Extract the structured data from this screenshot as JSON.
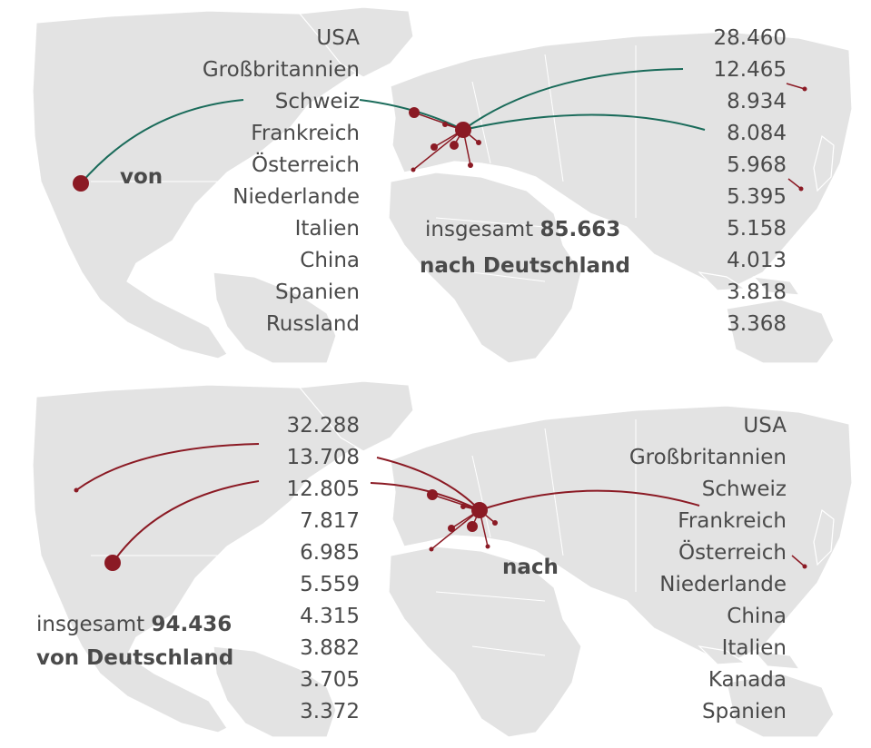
{
  "colors": {
    "top_flow": "#1a6b5a",
    "bottom_flow": "#8b1a24",
    "dot": "#8b1a24",
    "land": "#e3e3e3",
    "text": "#4a4a4a"
  },
  "top": {
    "direction": "von",
    "total_prefix": "insgesamt",
    "total_value": "85.663",
    "destination": "nach Deutschland",
    "countries": [
      "USA",
      "Großbritannien",
      "Schweiz",
      "Frankreich",
      "Österreich",
      "Niederlande",
      "Italien",
      "China",
      "Spanien",
      "Russland"
    ],
    "values": [
      "28.460",
      "12.465",
      "8.934",
      "8.084",
      "5.968",
      "5.395",
      "5.158",
      "4.013",
      "3.818",
      "3.368"
    ]
  },
  "bottom": {
    "direction": "nach",
    "total_prefix": "insgesamt",
    "total_value": "94.436",
    "origin": "von Deutschland",
    "countries": [
      "USA",
      "Großbritannien",
      "Schweiz",
      "Frankreich",
      "Österreich",
      "Niederlande",
      "China",
      "Italien",
      "Kanada",
      "Spanien"
    ],
    "values": [
      "32.288",
      "13.708",
      "12.805",
      "7.817",
      "6.985",
      "5.559",
      "4.315",
      "3.882",
      "3.705",
      "3.372"
    ]
  }
}
